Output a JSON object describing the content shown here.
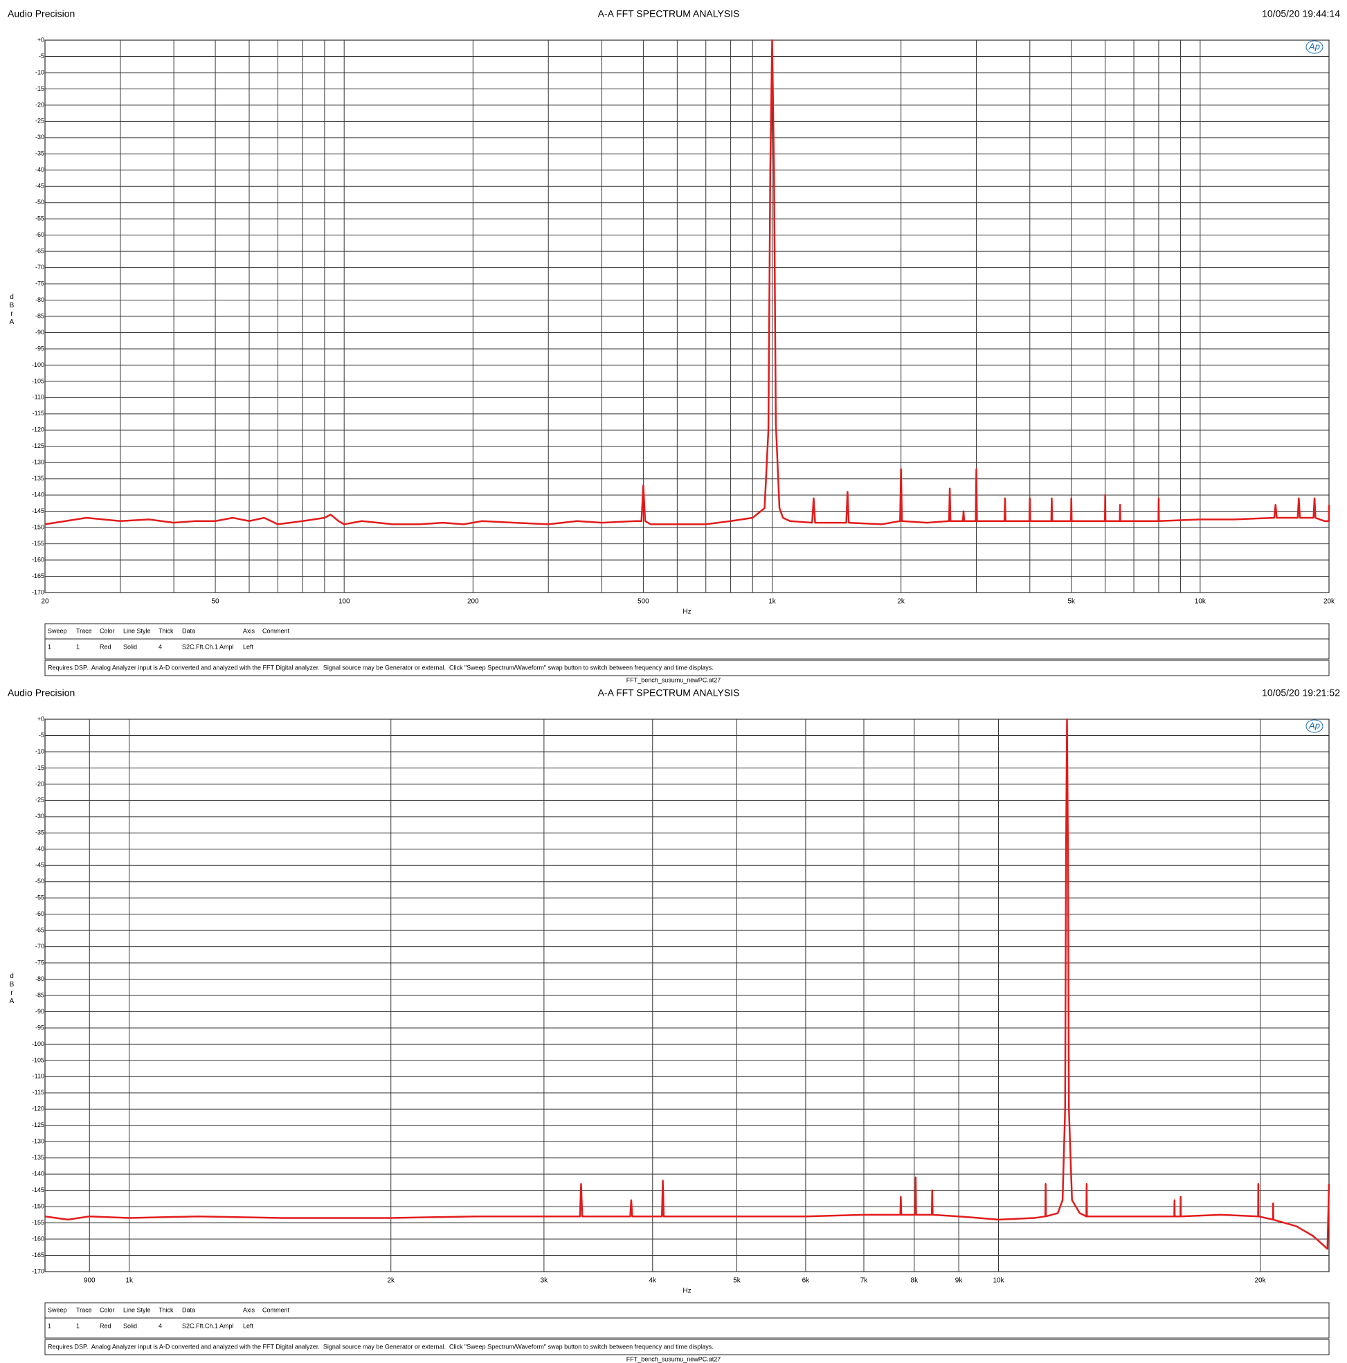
{
  "chart_data": [
    {
      "type": "line",
      "header_left": "Audio Precision",
      "title": "A-A FFT SPECTRUM ANALYSIS",
      "timestamp": "10/05/20 19:44:14",
      "logo": "Ap",
      "x_label": "Hz",
      "y_label": "dBr A",
      "log_x": true,
      "grid": true,
      "xlim": [
        20,
        20000
      ],
      "ylim": [
        -170,
        0
      ],
      "xticks": [
        20,
        50,
        100,
        200,
        500,
        {
          "value": 1000,
          "label": "1k"
        },
        {
          "value": 2000,
          "label": "2k"
        },
        {
          "value": 5000,
          "label": "5k"
        },
        {
          "value": 10000,
          "label": "10k"
        },
        {
          "value": 20000,
          "label": "20k"
        }
      ],
      "xminor": [
        30,
        40,
        60,
        70,
        80,
        90,
        300,
        400,
        600,
        700,
        800,
        900,
        3000,
        4000,
        6000,
        7000,
        8000,
        9000
      ],
      "yticks": [
        {
          "value": 0,
          "label": "+0"
        },
        -5,
        -10,
        -15,
        -20,
        -25,
        -30,
        -35,
        -40,
        -45,
        -50,
        -55,
        -60,
        -65,
        -70,
        -75,
        -80,
        -85,
        -90,
        -95,
        -100,
        -105,
        -110,
        -115,
        -120,
        -125,
        -130,
        -135,
        -140,
        -145,
        -150,
        -155,
        -160,
        -165,
        -170
      ],
      "x": [
        20,
        25,
        30,
        35,
        40,
        45,
        50,
        55,
        60,
        65,
        70,
        80,
        90,
        93,
        97,
        100,
        110,
        130,
        150,
        170,
        190,
        210,
        250,
        300,
        350,
        400,
        480,
        495,
        500,
        505,
        520,
        600,
        700,
        800,
        900,
        940,
        960,
        980,
        990,
        1000,
        1010,
        1020,
        1040,
        1060,
        1100,
        1240,
        1250,
        1260,
        1490,
        1500,
        1510,
        1800,
        1990,
        2000,
        2010,
        2300,
        2590,
        2600,
        2610,
        2790,
        2800,
        2810,
        2990,
        3000,
        3010,
        3490,
        3500,
        3510,
        3990,
        4000,
        4010,
        4490,
        4500,
        4510,
        4990,
        5000,
        5010,
        5990,
        6000,
        6010,
        6490,
        6500,
        6510,
        7990,
        8000,
        8010,
        10000,
        12000,
        14900,
        15000,
        15100,
        16900,
        17000,
        17100,
        18400,
        18500,
        18600,
        19500,
        19990,
        20000
      ],
      "series": [
        {
          "color": "#e31b1b",
          "values": [
            -149,
            -147,
            -148,
            -147.5,
            -148.5,
            -148,
            -148,
            -147,
            -148,
            -147,
            -149,
            -148,
            -147,
            -146,
            -148,
            -149,
            -148,
            -149,
            -149,
            -148.5,
            -149,
            -148,
            -148.5,
            -149,
            -148,
            -148.5,
            -148,
            -148,
            -137,
            -148,
            -149,
            -149,
            -149,
            -148,
            -147,
            -145,
            -144,
            -120,
            -40,
            0,
            -40,
            -118,
            -144,
            -147,
            -148,
            -148.5,
            -141,
            -148.5,
            -148.5,
            -139,
            -148.5,
            -149,
            -148,
            -132,
            -148,
            -148.5,
            -148,
            -138,
            -148,
            -148,
            -145,
            -148,
            -148,
            -132,
            -148,
            -148,
            -141,
            -148,
            -148,
            -141,
            -148,
            -148,
            -141,
            -148,
            -148,
            -141,
            -148,
            -148,
            -140,
            -148,
            -148,
            -143,
            -148,
            -148,
            -141,
            -148,
            -147.5,
            -147.5,
            -147,
            -143,
            -147,
            -147,
            -141,
            -147,
            -147,
            -141,
            -147,
            -148,
            -148,
            -143
          ]
        }
      ],
      "table": {
        "columns": [
          "Sweep",
          "Trace",
          "Color",
          "Line Style",
          "Thick",
          "Data",
          "Axis",
          "Comment"
        ],
        "rows": [
          [
            1,
            1,
            "Red",
            "Solid",
            4,
            "S2C.Fft.Ch.1 Ampl",
            "Left"
          ]
        ]
      },
      "note": "Requires DSP.  Analog Analyzer input is A-D converted and analyzed with the FFT Digital analyzer.  Signal source may be Generator or external.  Click \"Sweep Spectrum/Waveform\" swap button to switch between frequency and time displays.",
      "filename": "FFT_bench_susumu_newPC.at27"
    },
    {
      "type": "line",
      "header_left": "Audio Precision",
      "title": "A-A FFT SPECTRUM ANALYSIS",
      "timestamp": "10/05/20 19:21:52",
      "logo": "Ap",
      "x_label": "Hz",
      "y_label": "dBr A",
      "log_x": true,
      "grid": true,
      "xlim": [
        800,
        24000
      ],
      "ylim": [
        -170,
        0
      ],
      "xticks": [
        900,
        {
          "value": 1000,
          "label": "1k"
        },
        {
          "value": 2000,
          "label": "2k"
        },
        {
          "value": 3000,
          "label": "3k"
        },
        {
          "value": 4000,
          "label": "4k"
        },
        {
          "value": 5000,
          "label": "5k"
        },
        {
          "value": 6000,
          "label": "6k"
        },
        {
          "value": 7000,
          "label": "7k"
        },
        {
          "value": 8000,
          "label": "8k"
        },
        {
          "value": 9000,
          "label": "9k"
        },
        {
          "value": 10000,
          "label": "10k"
        },
        {
          "value": 20000,
          "label": "20k"
        }
      ],
      "yticks": [
        {
          "value": 0,
          "label": "+0"
        },
        -5,
        -10,
        -15,
        -20,
        -25,
        -30,
        -35,
        -40,
        -45,
        -50,
        -55,
        -60,
        -65,
        -70,
        -75,
        -80,
        -85,
        -90,
        -95,
        -100,
        -105,
        -110,
        -115,
        -120,
        -125,
        -130,
        -135,
        -140,
        -145,
        -150,
        -155,
        -160,
        -165,
        -170
      ],
      "x": [
        800,
        850,
        900,
        1000,
        1200,
        1500,
        2000,
        2500,
        3000,
        3300,
        3310,
        3320,
        3770,
        3780,
        3790,
        4100,
        4110,
        4120,
        5000,
        6000,
        7000,
        7710,
        7720,
        7730,
        8020,
        8030,
        8040,
        8380,
        8390,
        8400,
        9000,
        10000,
        11000,
        11320,
        11330,
        11340,
        11700,
        11850,
        11930,
        11960,
        11990,
        12020,
        12050,
        12150,
        12400,
        12620,
        12630,
        12640,
        14000,
        15930,
        15940,
        15950,
        16190,
        16200,
        16210,
        18000,
        19890,
        19900,
        19910,
        20690,
        20700,
        20710,
        22000,
        23000,
        23900,
        24000
      ],
      "series": [
        {
          "color": "#e31b1b",
          "values": [
            -153,
            -154,
            -153,
            -153.5,
            -153,
            -153.5,
            -153.5,
            -153,
            -153,
            -153,
            -143,
            -153,
            -153,
            -148,
            -153,
            -153,
            -142,
            -153,
            -153,
            -153,
            -152.5,
            -152.5,
            -147,
            -152.5,
            -152.5,
            -141,
            -152.5,
            -152.5,
            -145,
            -152.5,
            -153,
            -154,
            -153.5,
            -153,
            -143,
            -153,
            -152,
            -148,
            -120,
            -40,
            0,
            -40,
            -120,
            -148,
            -152,
            -153,
            -143,
            -153,
            -153,
            -153,
            -148,
            -153,
            -153,
            -147,
            -153,
            -152.5,
            -153,
            -143,
            -153,
            -154,
            -149,
            -154,
            -156,
            -159,
            -163,
            -143
          ]
        }
      ],
      "table": {
        "columns": [
          "Sweep",
          "Trace",
          "Color",
          "Line Style",
          "Thick",
          "Data",
          "Axis",
          "Comment"
        ],
        "rows": [
          [
            1,
            1,
            "Red",
            "Solid",
            4,
            "S2C.Fft.Ch.1 Ampl",
            "Left"
          ]
        ]
      },
      "note": "Requires DSP.  Analog Analyzer input is A-D converted and analyzed with the FFT Digital analyzer.  Signal source may be Generator or external.  Click \"Sweep Spectrum/Waveform\" swap button to switch between frequency and time displays.",
      "filename": "FFT_bench_susumu_newPC.at27"
    }
  ]
}
